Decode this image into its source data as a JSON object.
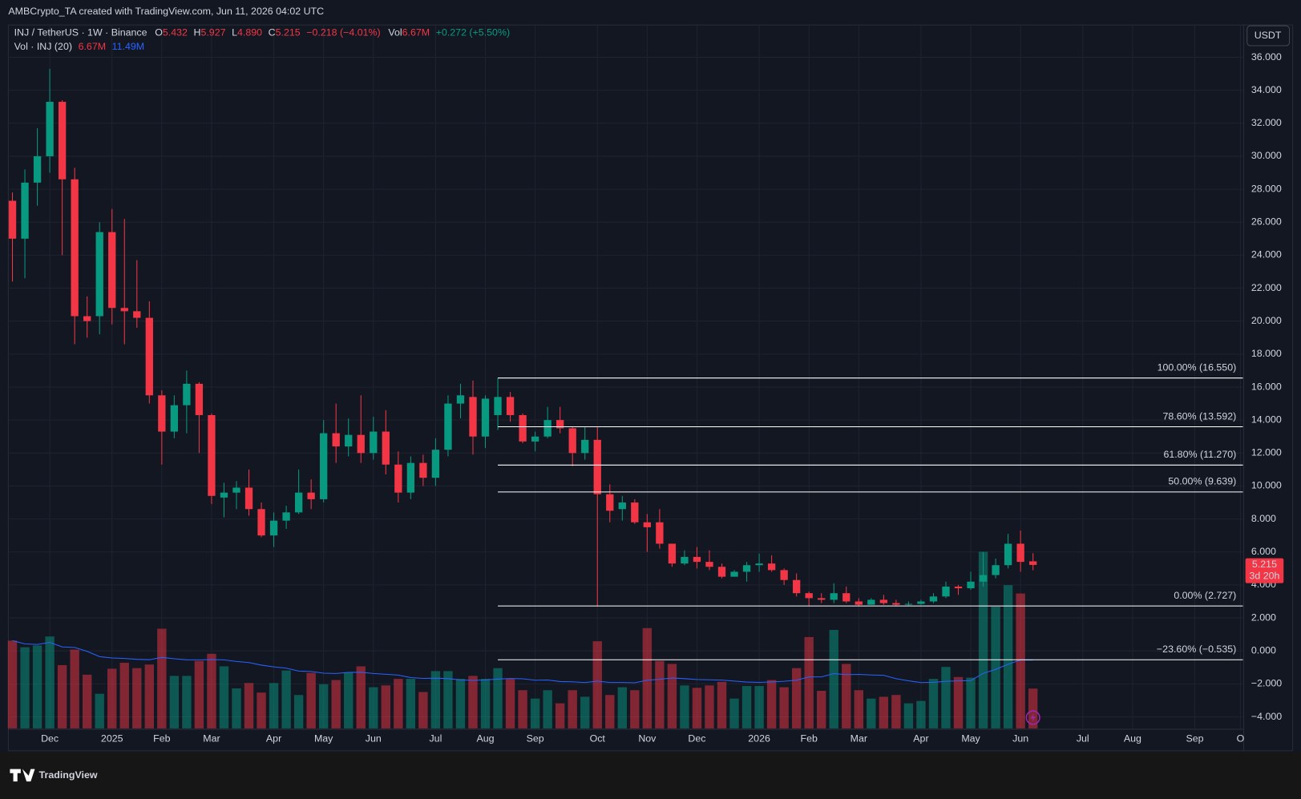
{
  "header": "AMBCrypto_TA created with TradingView.com, Jun 11, 2026 04:02 UTC",
  "brand": "TradingView",
  "chart_data": {
    "type": "candlestick",
    "symbol": "INJ / TetherUS · 1W · Binance",
    "ohlc": [
      {
        "key": "O",
        "value": "5.432"
      },
      {
        "key": "H",
        "value": "5.927"
      },
      {
        "key": "L",
        "value": "4.890"
      },
      {
        "key": "C",
        "value": "5.215"
      }
    ],
    "change": "−0.218 (−4.01%)",
    "vol_key": "Vol",
    "vol_value": "6.67M",
    "vol_change": "+0.272 (+5.50%)",
    "volume_legend": {
      "name": "Vol · INJ (20)",
      "value": "6.67M",
      "ma": "11.49M"
    },
    "currency": "USDT",
    "countdown": "3d 20h",
    "up_color": "#089981",
    "down_color": "#f23645",
    "ma_color": "#2962ff",
    "candles": {
      "open": [
        27.3,
        25.0,
        28.4,
        30.0,
        33.3,
        28.6,
        20.3,
        20.3,
        25.4,
        20.8,
        20.6,
        20.2,
        15.5,
        13.3,
        14.9,
        16.2,
        14.3,
        9.3,
        9.6,
        9.9,
        8.6,
        7.0,
        7.9,
        8.4,
        9.6,
        9.2,
        13.2,
        12.4,
        13.1,
        12.0,
        13.3,
        11.3,
        9.6,
        11.4,
        10.5,
        12.2,
        15.0,
        15.4,
        13.0,
        14.3,
        15.4,
        14.3,
        12.7,
        13.0,
        14.0,
        13.5,
        12.0,
        12.8,
        9.5,
        8.6,
        9.0,
        7.8,
        7.8,
        6.5,
        5.3,
        5.7,
        5.4,
        5.1,
        4.5,
        4.8,
        5.2,
        5.3,
        4.9,
        4.3,
        3.5,
        3.2,
        3.1,
        3.5,
        3.0,
        2.8,
        3.1,
        2.9,
        2.8,
        2.85,
        3.0,
        3.3,
        3.9,
        3.8,
        4.2,
        4.6,
        5.2,
        6.5,
        5.432
      ],
      "high": [
        27.8,
        29.2,
        31.7,
        35.3,
        33.4,
        29.3,
        21.5,
        26.0,
        26.8,
        26.2,
        23.7,
        21.2,
        15.8,
        15.5,
        17.0,
        16.3,
        14.4,
        10.2,
        10.3,
        11.0,
        9.0,
        8.4,
        8.8,
        11.0,
        10.4,
        14.0,
        15.0,
        14.1,
        15.5,
        14.2,
        14.6,
        12.1,
        11.8,
        11.9,
        12.9,
        15.5,
        16.2,
        16.4,
        15.5,
        16.55,
        15.7,
        14.4,
        13.3,
        14.8,
        14.8,
        13.6,
        13.6,
        13.6,
        10.1,
        9.4,
        9.2,
        8.3,
        8.6,
        6.5,
        6.1,
        6.3,
        6.1,
        5.3,
        4.9,
        5.4,
        5.9,
        5.8,
        5.0,
        4.7,
        3.6,
        3.5,
        4.1,
        3.9,
        3.2,
        3.2,
        3.4,
        3.1,
        3.0,
        3.1,
        3.5,
        4.2,
        4.0,
        4.8,
        6.0,
        5.6,
        7.1,
        7.3,
        5.927
      ],
      "low": [
        22.4,
        22.6,
        27.0,
        29.0,
        24.0,
        18.6,
        19.0,
        19.2,
        19.8,
        18.6,
        19.6,
        15.0,
        11.3,
        12.9,
        13.2,
        12.0,
        8.9,
        8.1,
        8.6,
        8.2,
        6.9,
        6.3,
        7.4,
        8.3,
        8.6,
        9.0,
        11.4,
        11.8,
        11.4,
        11.6,
        10.7,
        9.0,
        9.2,
        10.0,
        10.0,
        11.8,
        14.1,
        11.9,
        12.3,
        13.4,
        13.9,
        12.6,
        12.1,
        12.9,
        13.2,
        11.2,
        11.6,
        2.727,
        7.8,
        7.9,
        7.7,
        6.0,
        6.2,
        5.1,
        5.2,
        5.0,
        4.9,
        4.4,
        4.5,
        4.2,
        4.8,
        4.8,
        4.0,
        3.3,
        2.75,
        2.9,
        2.9,
        2.9,
        2.75,
        2.8,
        2.8,
        2.75,
        2.75,
        2.8,
        2.9,
        3.2,
        3.4,
        3.7,
        3.9,
        4.4,
        5.0,
        4.8,
        4.89
      ],
      "close": [
        25.0,
        28.4,
        30.0,
        33.3,
        28.6,
        20.3,
        20.0,
        25.4,
        20.8,
        20.6,
        20.2,
        15.5,
        13.3,
        14.9,
        16.2,
        14.3,
        9.4,
        9.6,
        9.9,
        8.6,
        7.0,
        7.9,
        8.4,
        9.6,
        9.2,
        13.2,
        12.4,
        13.1,
        12.0,
        13.3,
        11.3,
        9.6,
        11.4,
        10.5,
        12.2,
        15.0,
        15.5,
        13.0,
        15.3,
        15.4,
        14.3,
        12.7,
        13.0,
        14.0,
        13.5,
        12.0,
        12.8,
        9.5,
        8.5,
        9.0,
        7.8,
        7.5,
        6.5,
        5.3,
        5.7,
        5.4,
        5.1,
        4.5,
        4.8,
        5.2,
        5.3,
        4.9,
        4.3,
        3.5,
        3.2,
        3.1,
        3.5,
        3.0,
        2.8,
        3.1,
        2.9,
        2.8,
        2.85,
        3.0,
        3.3,
        3.9,
        3.8,
        4.2,
        4.6,
        5.2,
        6.5,
        5.4,
        5.215
      ],
      "volume": [
        14.7,
        13.6,
        13.9,
        15.4,
        10.6,
        13.2,
        9.0,
        5.8,
        10.0,
        11.0,
        10.1,
        10.7,
        16.7,
        8.8,
        8.8,
        11.3,
        12.5,
        10.4,
        6.7,
        7.6,
        6.0,
        7.6,
        9.7,
        5.6,
        9.3,
        7.4,
        8.1,
        9.4,
        10.4,
        6.9,
        7.2,
        8.3,
        8.3,
        6.1,
        9.6,
        9.6,
        8.3,
        8.8,
        8.3,
        10.1,
        8.3,
        6.4,
        5.0,
        6.4,
        4.2,
        6.4,
        5.3,
        14.6,
        5.6,
        6.9,
        6.4,
        16.8,
        11.3,
        10.8,
        7.2,
        6.8,
        7.2,
        7.8,
        5.0,
        7.1,
        7.1,
        8.1,
        6.9,
        10.1,
        15.3,
        6.3,
        16.5,
        10.8,
        6.4,
        5.0,
        5.3,
        5.6,
        4.2,
        4.6,
        8.3,
        10.3,
        8.6,
        8.5,
        29.6,
        20.4,
        24.0,
        22.6,
        6.67
      ]
    },
    "fib_levels": [
      {
        "label": "100.00% (16.550)",
        "value": 16.55
      },
      {
        "label": "78.60% (13.592)",
        "value": 13.592
      },
      {
        "label": "61.80% (11.270)",
        "value": 11.27
      },
      {
        "label": "50.00% (9.639)",
        "value": 9.639
      },
      {
        "label": "0.00% (2.727)",
        "value": 2.727
      },
      {
        "label": "−23.60% (−0.535)",
        "value": -0.535
      }
    ],
    "xlim": [
      -0.333,
      98.867
    ],
    "xticks": [
      {
        "value": 3,
        "label": "Dec"
      },
      {
        "value": 8,
        "label": "2025"
      },
      {
        "value": 12,
        "label": "Feb"
      },
      {
        "value": 16,
        "label": "Mar"
      },
      {
        "value": 21,
        "label": "Apr"
      },
      {
        "value": 25,
        "label": "May"
      },
      {
        "value": 29,
        "label": "Jun"
      },
      {
        "value": 34,
        "label": "Jul"
      },
      {
        "value": 38,
        "label": "Aug"
      },
      {
        "value": 42,
        "label": "Sep"
      },
      {
        "value": 47,
        "label": "Oct"
      },
      {
        "value": 51,
        "label": "Nov"
      },
      {
        "value": 55,
        "label": "Dec"
      },
      {
        "value": 60,
        "label": "2026"
      },
      {
        "value": 64,
        "label": "Feb"
      },
      {
        "value": 68,
        "label": "Mar"
      },
      {
        "value": 73,
        "label": "Apr"
      },
      {
        "value": 77,
        "label": "May"
      },
      {
        "value": 81,
        "label": "Jun"
      },
      {
        "value": 86,
        "label": "Jul"
      },
      {
        "value": 90,
        "label": "Aug"
      },
      {
        "value": 95,
        "label": "Sep"
      },
      {
        "value": 98.67,
        "label": "O"
      }
    ],
    "ylim": [
      -4.7,
      37.96
    ],
    "yticks": [
      {
        "value": -4,
        "label": "−4.000"
      },
      {
        "value": -2,
        "label": "−2.000"
      },
      {
        "value": 0,
        "label": "0.000"
      },
      {
        "value": 2,
        "label": "2.000"
      },
      {
        "value": 4,
        "label": "4.000"
      },
      {
        "value": 6,
        "label": "6.000"
      },
      {
        "value": 8,
        "label": "8.000"
      },
      {
        "value": 10,
        "label": "10.000"
      },
      {
        "value": 12,
        "label": "12.000"
      },
      {
        "value": 14,
        "label": "14.000"
      },
      {
        "value": 16,
        "label": "16.000"
      },
      {
        "value": 18,
        "label": "18.000"
      },
      {
        "value": 20,
        "label": "20.000"
      },
      {
        "value": 22,
        "label": "22.000"
      },
      {
        "value": 24,
        "label": "24.000"
      },
      {
        "value": 26,
        "label": "26.000"
      },
      {
        "value": 28,
        "label": "28.000"
      },
      {
        "value": 30,
        "label": "30.000"
      },
      {
        "value": 32,
        "label": "32.000"
      },
      {
        "value": 34,
        "label": "34.000"
      },
      {
        "value": 36,
        "label": "36.000"
      }
    ],
    "grid": true
  }
}
